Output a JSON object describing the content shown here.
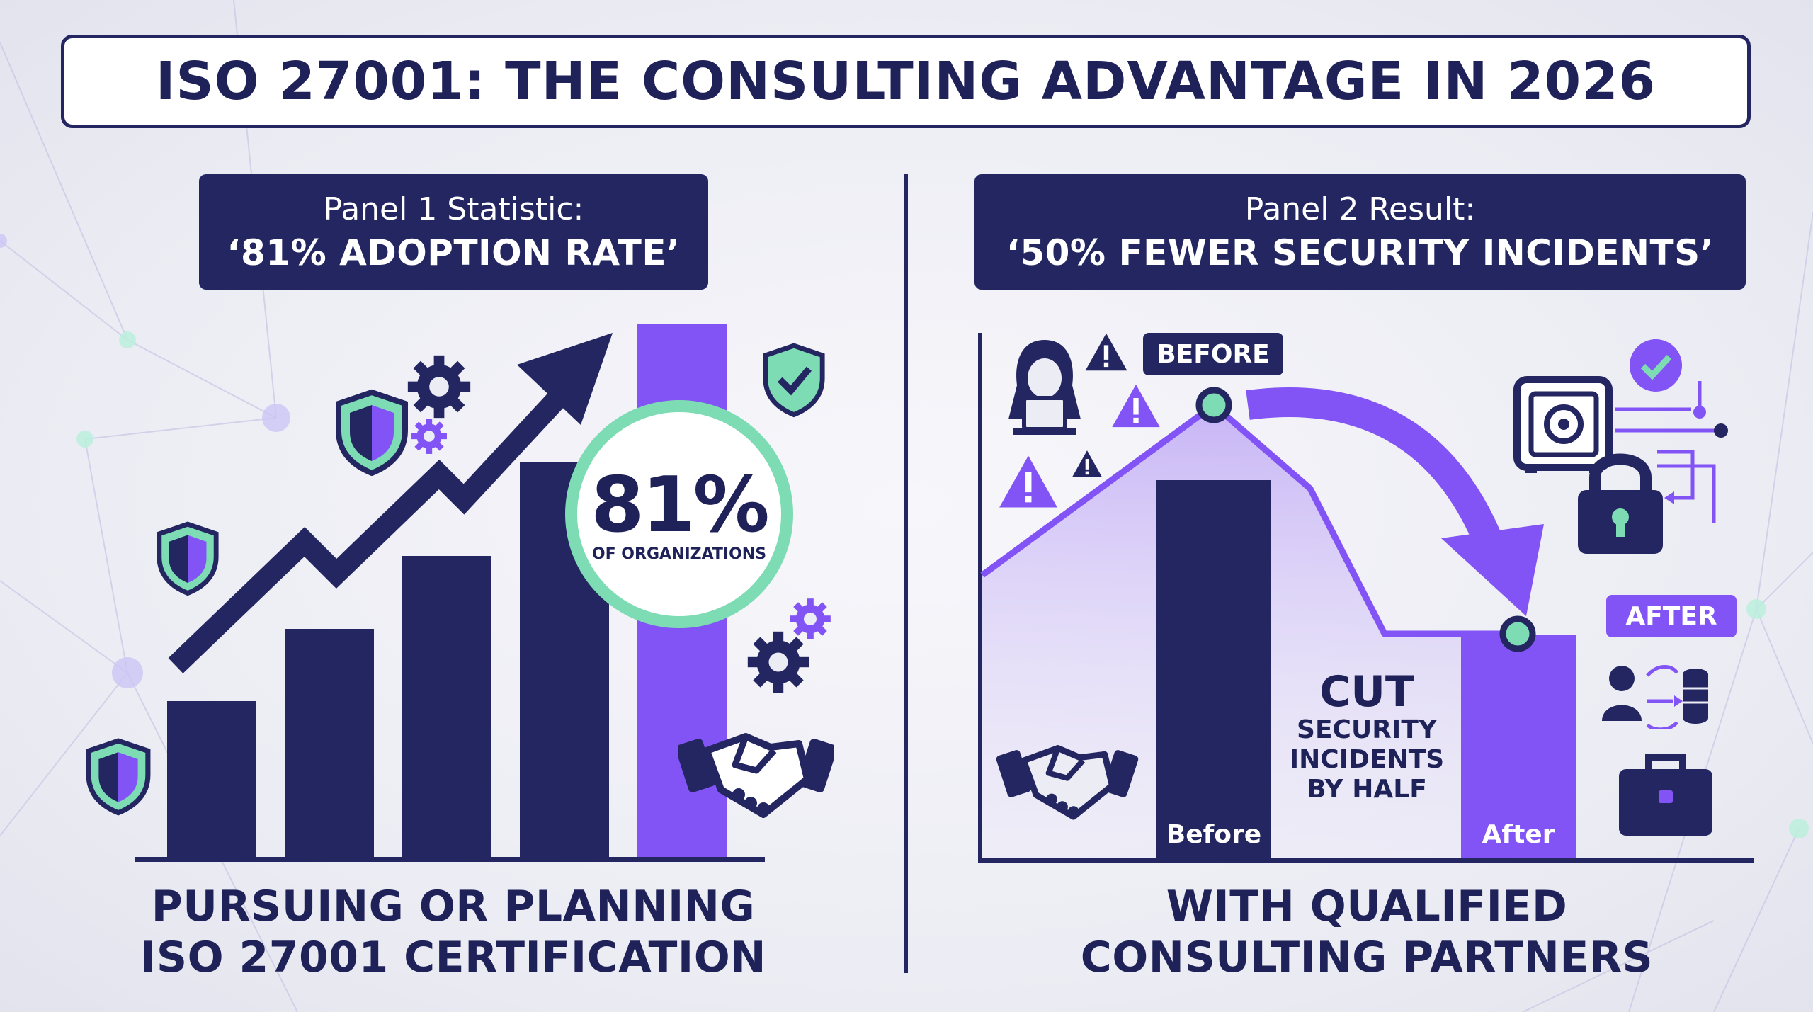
{
  "title": "ISO 27001: THE CONSULTING ADVANTAGE IN 2026",
  "panel1": {
    "header_sub": "Panel 1 Statistic:",
    "header_main": "‘81% ADOPTION RATE’",
    "stat_value": "81%",
    "stat_label": "OF ORGANIZATIONS",
    "caption_line1": "PURSUING OR PLANNING",
    "caption_line2": "ISO 27001 CERTIFICATION"
  },
  "panel2": {
    "header_sub": "Panel 2 Result:",
    "header_main": "‘50% FEWER SECURITY INCIDENTS’",
    "tag_before": "BEFORE",
    "tag_after": "AFTER",
    "bar_before_label": "Before",
    "bar_after_label": "After",
    "cut_big": "CUT",
    "cut_line1": "SECURITY",
    "cut_line2": "INCIDENTS",
    "cut_line3": "BY HALF",
    "caption_line1": "WITH QUALIFIED",
    "caption_line2": "CONSULTING PARTNERS"
  },
  "colors": {
    "navy": "#232661",
    "purple": "#8254f5",
    "mint": "#7ddcb3",
    "background": "#ececf4"
  },
  "icons": [
    "shield-icon",
    "gear-icon",
    "trend-arrow-icon",
    "handshake-icon",
    "hacker-icon",
    "warning-icon",
    "vault-icon",
    "padlock-icon",
    "checkmark-icon",
    "user-database-icon",
    "briefcase-icon"
  ]
}
